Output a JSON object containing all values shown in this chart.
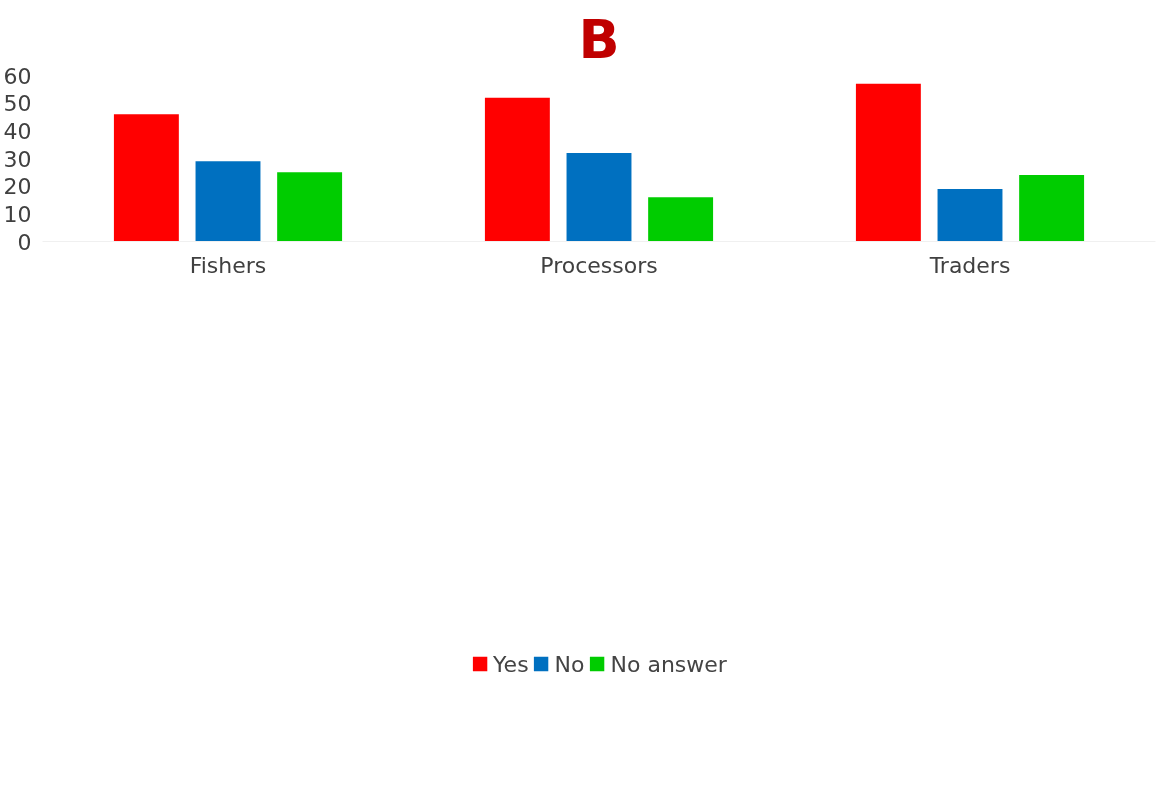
{
  "chart_data": {
    "type": "bar",
    "title": "B",
    "categories": [
      "Fishers",
      "Processors",
      "Traders"
    ],
    "series": [
      {
        "name": "Yes",
        "color": "#ff0000",
        "values": [
          46,
          52,
          57
        ]
      },
      {
        "name": "No",
        "color": "#0070c0",
        "values": [
          29,
          32,
          19
        ]
      },
      {
        "name": "No answer",
        "color": "#00cc00",
        "values": [
          25,
          16,
          24
        ]
      }
    ],
    "ylim": [
      0,
      60
    ],
    "yticks": [
      0,
      10,
      20,
      30,
      40,
      50,
      60
    ],
    "grid": false,
    "legend": "bottom"
  }
}
